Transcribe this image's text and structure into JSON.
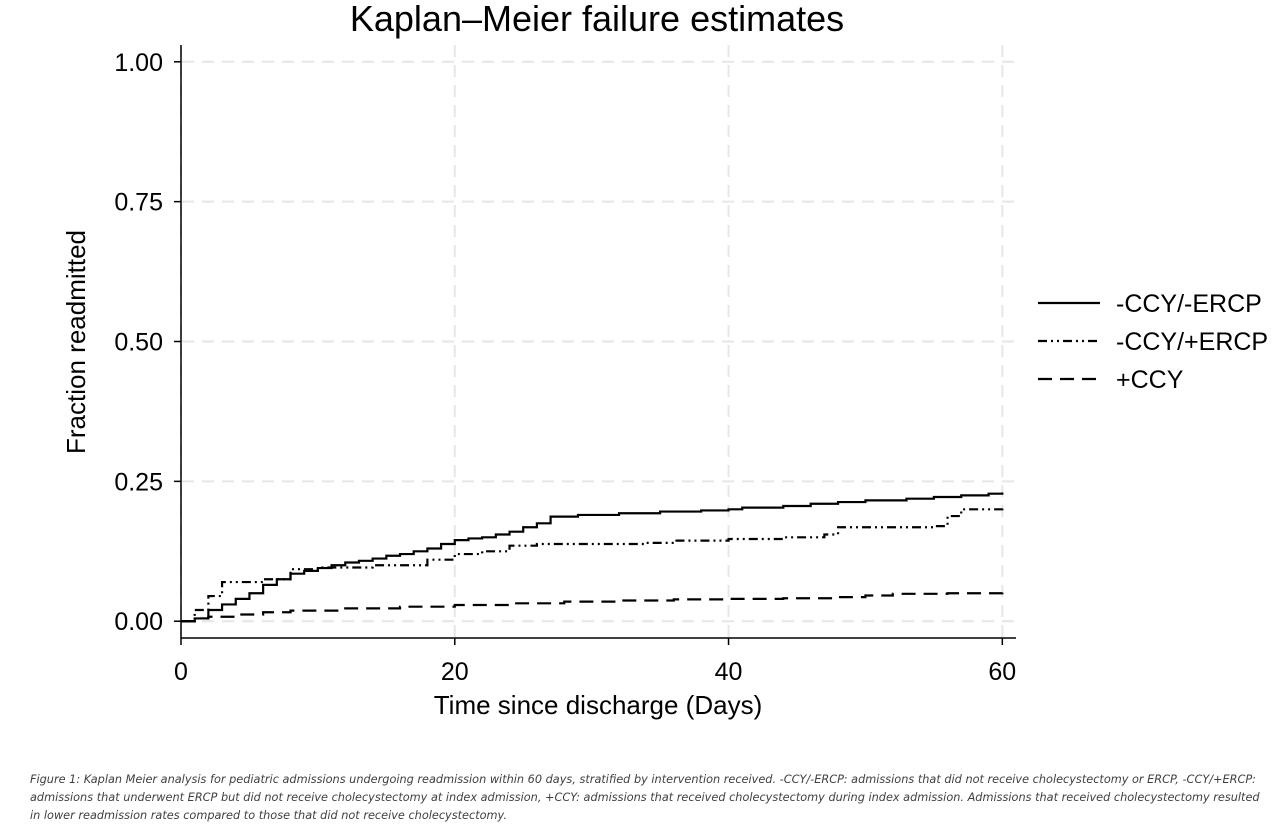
{
  "chart_data": {
    "type": "line",
    "title": "Kaplan–Meier failure estimates",
    "xlabel": "Time since discharge (Days)",
    "ylabel": "Fraction readmitted",
    "xlim": [
      0,
      61
    ],
    "ylim": [
      -0.03,
      1.03
    ],
    "xticks": [
      0,
      20,
      40,
      60
    ],
    "xtick_labels": [
      "0",
      "20",
      "40",
      "60"
    ],
    "yticks": [
      0,
      0.25,
      0.5,
      0.75,
      1.0
    ],
    "ytick_labels": [
      "0.00",
      "0.25",
      "0.50",
      "0.75",
      "1.00"
    ],
    "grid": true,
    "legend_position": "right",
    "step": true,
    "series": [
      {
        "name": "-CCY/-ERCP",
        "dash": "solid",
        "x": [
          0,
          1,
          2,
          3,
          4,
          5,
          6,
          7,
          8,
          9,
          10,
          11,
          12,
          13,
          14,
          15,
          16,
          17,
          18,
          19,
          20,
          21,
          22,
          23,
          24,
          25,
          26,
          27,
          29,
          32,
          35,
          38,
          40,
          41,
          44,
          46,
          48,
          50,
          53,
          55,
          57,
          59,
          60
        ],
        "y": [
          0,
          0.005,
          0.02,
          0.03,
          0.04,
          0.05,
          0.065,
          0.075,
          0.085,
          0.09,
          0.095,
          0.1,
          0.105,
          0.108,
          0.112,
          0.117,
          0.12,
          0.125,
          0.13,
          0.138,
          0.145,
          0.148,
          0.15,
          0.155,
          0.16,
          0.168,
          0.175,
          0.187,
          0.19,
          0.193,
          0.196,
          0.198,
          0.2,
          0.203,
          0.206,
          0.21,
          0.213,
          0.216,
          0.219,
          0.222,
          0.225,
          0.228,
          0.23
        ]
      },
      {
        "name": "-CCY/+ERCP",
        "dash": "dash-dot",
        "x": [
          0,
          1,
          2,
          3,
          6,
          8,
          10,
          14,
          18,
          20,
          22,
          24,
          26,
          30,
          34,
          36,
          40,
          44,
          47,
          48,
          55,
          56,
          57,
          60
        ],
        "y": [
          0,
          0.02,
          0.045,
          0.07,
          0.075,
          0.093,
          0.096,
          0.1,
          0.11,
          0.12,
          0.125,
          0.135,
          0.138,
          0.138,
          0.14,
          0.144,
          0.147,
          0.15,
          0.155,
          0.168,
          0.17,
          0.188,
          0.2,
          0.205
        ]
      },
      {
        "name": "+CCY",
        "dash": "dashed",
        "x": [
          0,
          1,
          2,
          4,
          6,
          8,
          12,
          16,
          20,
          24,
          28,
          32,
          36,
          40,
          44,
          48,
          50,
          52,
          56,
          60
        ],
        "y": [
          0,
          0.005,
          0.008,
          0.012,
          0.016,
          0.019,
          0.023,
          0.026,
          0.029,
          0.032,
          0.035,
          0.037,
          0.039,
          0.04,
          0.041,
          0.043,
          0.046,
          0.049,
          0.05,
          0.051
        ]
      }
    ]
  },
  "caption": "Figure 1: Kaplan Meier analysis for pediatric admissions undergoing readmission within 60 days, stratified by intervention received. -CCY/-ERCP: admissions that did not receive cholecystectomy or ERCP, -CCY/+ERCP: admissions that underwent ERCP but did not receive cholecystectomy at index admission, +CCY: admissions that received cholecystectomy during index admission. Admissions that received cholecystectomy resulted in lower readmission rates compared to those that did not receive cholecystectomy."
}
